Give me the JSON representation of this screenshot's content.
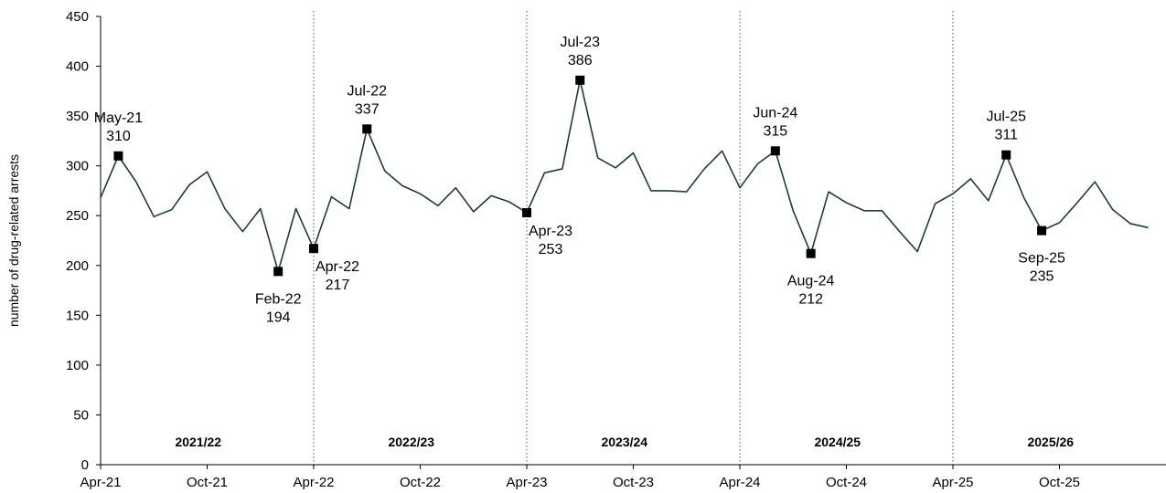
{
  "chart_data": {
    "type": "line",
    "title": "",
    "xlabel": "",
    "ylabel": "number of drug-related arrests",
    "ylim": [
      0,
      450
    ],
    "yticks": [
      0,
      50,
      100,
      150,
      200,
      250,
      300,
      350,
      400,
      450
    ],
    "grid": false,
    "legend": "none",
    "line_color": "#1f3d33",
    "marker_color": "#000000",
    "x_tick_labels": [
      "Apr-21",
      "Oct-21",
      "Apr-22",
      "Oct-22",
      "Apr-23",
      "Oct-23",
      "Apr-24",
      "Oct-24",
      "Apr-25",
      "Oct-25"
    ],
    "x": [
      "Apr-21",
      "May-21",
      "Jun-21",
      "Jul-21",
      "Aug-21",
      "Sep-21",
      "Oct-21",
      "Nov-21",
      "Dec-21",
      "Jan-22",
      "Feb-22",
      "Mar-22",
      "Apr-22",
      "May-22",
      "Jun-22",
      "Jul-22",
      "Aug-22",
      "Sep-22",
      "Oct-22",
      "Nov-22",
      "Dec-22",
      "Jan-23",
      "Feb-23",
      "Mar-23",
      "Apr-23",
      "May-23",
      "Jun-23",
      "Jul-23",
      "Aug-23",
      "Sep-23",
      "Oct-23",
      "Nov-23",
      "Dec-23",
      "Jan-24",
      "Feb-24",
      "Mar-24",
      "Apr-24",
      "May-24",
      "Jun-24",
      "Jul-24",
      "Aug-24",
      "Sep-24",
      "Oct-24",
      "Nov-24",
      "Dec-24",
      "Jan-25",
      "Feb-25",
      "Mar-25",
      "Apr-25",
      "May-25",
      "Jun-25",
      "Jul-25",
      "Aug-25",
      "Sep-25",
      "Oct-25",
      "Nov-25",
      "Dec-25",
      "Jan-26",
      "Feb-26",
      "Mar-26"
    ],
    "series": [
      {
        "values": [
          268,
          310,
          284,
          249,
          256,
          281,
          294,
          257,
          234,
          257,
          194,
          257,
          217,
          269,
          257,
          337,
          295,
          280,
          272,
          260,
          278,
          254,
          270,
          264,
          253,
          293,
          297,
          386,
          308,
          298,
          313,
          275,
          275,
          274,
          297,
          315,
          278,
          302,
          315,
          255,
          212,
          274,
          263,
          255,
          255,
          234,
          214,
          262,
          272,
          287,
          265,
          311,
          268,
          235,
          243,
          263,
          284,
          256,
          242,
          238
        ]
      }
    ],
    "annotations": [
      {
        "x": "May-21",
        "label": "May-21",
        "value": 310,
        "position": "above"
      },
      {
        "x": "Feb-22",
        "label": "Feb-22",
        "value": 194,
        "position": "below"
      },
      {
        "x": "Apr-22",
        "label": "Apr-22",
        "value": 217,
        "position": "below-right"
      },
      {
        "x": "Jul-22",
        "label": "Jul-22",
        "value": 337,
        "position": "above"
      },
      {
        "x": "Apr-23",
        "label": "Apr-23",
        "value": 253,
        "position": "below-right"
      },
      {
        "x": "Jul-23",
        "label": "Jul-23",
        "value": 386,
        "position": "above"
      },
      {
        "x": "Jun-24",
        "label": "Jun-24",
        "value": 315,
        "position": "above"
      },
      {
        "x": "Aug-24",
        "label": "Aug-24",
        "value": 212,
        "position": "below"
      },
      {
        "x": "Jul-25",
        "label": "Jul-25",
        "value": 311,
        "position": "above"
      },
      {
        "x": "Sep-25",
        "label": "Sep-25",
        "value": 235,
        "position": "below"
      }
    ],
    "period_dividers": [
      "Apr-22",
      "Apr-23",
      "Apr-24",
      "Apr-25"
    ],
    "periods": [
      {
        "label": "2021/22",
        "start": "Apr-21",
        "end": "Mar-22"
      },
      {
        "label": "2022/23",
        "start": "Apr-22",
        "end": "Mar-23"
      },
      {
        "label": "2023/24",
        "start": "Apr-23",
        "end": "Mar-24"
      },
      {
        "label": "2024/25",
        "start": "Apr-24",
        "end": "Mar-25"
      },
      {
        "label": "2025/26",
        "start": "Apr-25",
        "end": "Mar-26"
      }
    ]
  }
}
